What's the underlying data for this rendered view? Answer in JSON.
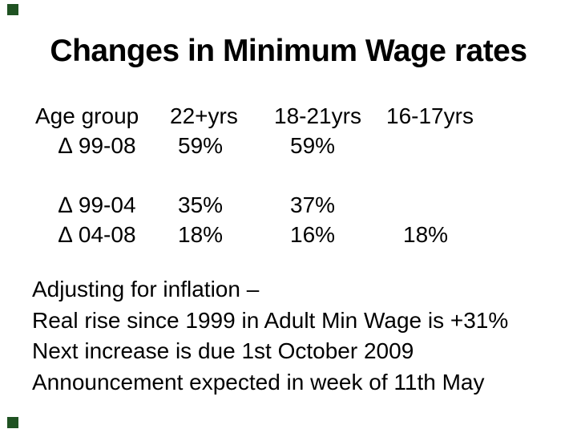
{
  "slide": {
    "title": "Changes in Minimum Wage rates",
    "decor": {
      "accent_color": "#1F5222",
      "accent_shape": "square"
    },
    "table": {
      "header": [
        "Age group",
        "22+yrs",
        "18-21yrs",
        "16-17yrs"
      ],
      "rows": [
        [
          "∆ 99-08",
          "59%",
          "59%",
          ""
        ],
        [
          "∆ 99-04",
          "35%",
          "37%",
          ""
        ],
        [
          "∆ 04-08",
          "18%",
          "16%",
          "18%"
        ]
      ]
    },
    "notes": [
      "Adjusting for inflation –",
      "Real rise since 1999 in Adult Min Wage is +31%",
      "Next increase is due 1st October 2009",
      "Announcement expected in week of 11th May"
    ]
  }
}
